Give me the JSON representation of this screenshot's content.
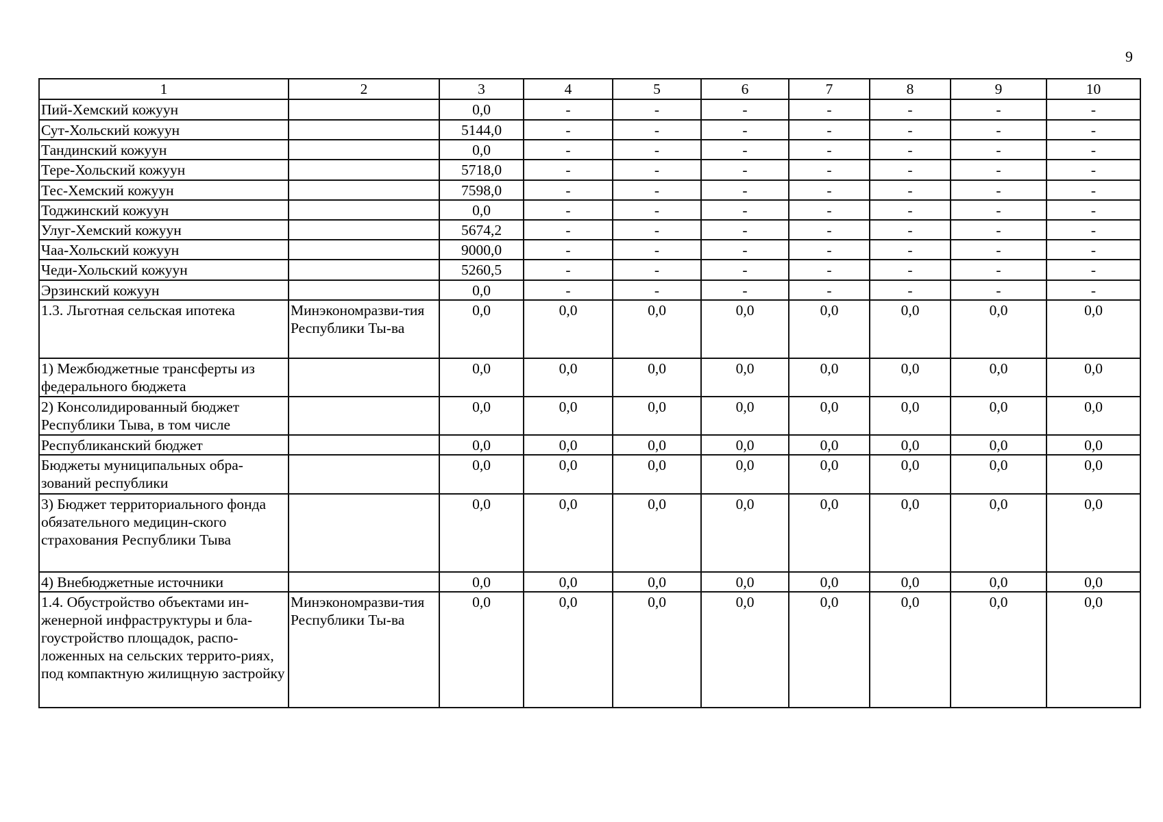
{
  "page_number": "9",
  "header": [
    "1",
    "2",
    "3",
    "4",
    "5",
    "6",
    "7",
    "8",
    "9",
    "10"
  ],
  "rows": [
    {
      "name": "Пий-Хемский кожуун",
      "resp": "",
      "values": [
        "0,0",
        "-",
        "-",
        "-",
        "-",
        "-",
        "-",
        "-"
      ]
    },
    {
      "name": "Сут-Хольский кожуун",
      "resp": "",
      "values": [
        "5144,0",
        "-",
        "-",
        "-",
        "-",
        "-",
        "-",
        "-"
      ]
    },
    {
      "name": "Тандинский кожуун",
      "resp": "",
      "values": [
        "0,0",
        "-",
        "-",
        "-",
        "-",
        "-",
        "-",
        "-"
      ]
    },
    {
      "name": "Тере-Хольский кожуун",
      "resp": "",
      "values": [
        "5718,0",
        "-",
        "-",
        "-",
        "-",
        "-",
        "-",
        "-"
      ]
    },
    {
      "name": "Тес-Хемский кожуун",
      "resp": "",
      "values": [
        "7598,0",
        "-",
        "-",
        "-",
        "-",
        "-",
        "-",
        "-"
      ]
    },
    {
      "name": "Тоджинский кожуун",
      "resp": "",
      "values": [
        "0,0",
        "-",
        "-",
        "-",
        "-",
        "-",
        "-",
        "-"
      ]
    },
    {
      "name": "Улуг-Хемский кожуун",
      "resp": "",
      "values": [
        "5674,2",
        "-",
        "-",
        "-",
        "-",
        "-",
        "-",
        "-"
      ]
    },
    {
      "name": "Чаа-Хольский кожуун",
      "resp": "",
      "values": [
        "9000,0",
        "-",
        "-",
        "-",
        "-",
        "-",
        "-",
        "-"
      ]
    },
    {
      "name": "Чеди-Хольский кожуун",
      "resp": "",
      "values": [
        "5260,5",
        "-",
        "-",
        "-",
        "-",
        "-",
        "-",
        "-"
      ]
    },
    {
      "name": "Эрзинский кожуун",
      "resp": "",
      "values": [
        "0,0",
        "-",
        "-",
        "-",
        "-",
        "-",
        "-",
        "-"
      ]
    },
    {
      "name": "1.3. Льготная сельская ипотека",
      "resp": "Минэкономразви-тия Республики Ты-ва",
      "values": [
        "0,0",
        "0,0",
        "0,0",
        "0,0",
        "0,0",
        "0,0",
        "0,0",
        "0,0"
      ]
    },
    {
      "name": "1) Межбюджетные трансферты из федерального бюджета",
      "resp": "",
      "values": [
        "0,0",
        "0,0",
        "0,0",
        "0,0",
        "0,0",
        "0,0",
        "0,0",
        "0,0"
      ]
    },
    {
      "name": "2) Консолидированный бюджет Республики Тыва, в том числе",
      "resp": "",
      "values": [
        "0,0",
        "0,0",
        "0,0",
        "0,0",
        "0,0",
        "0,0",
        "0,0",
        "0,0"
      ]
    },
    {
      "name": "Республиканский бюджет",
      "resp": "",
      "values": [
        "0,0",
        "0,0",
        "0,0",
        "0,0",
        "0,0",
        "0,0",
        "0,0",
        "0,0"
      ]
    },
    {
      "name": "Бюджеты муниципальных обра-зований республики",
      "resp": "",
      "values": [
        "0,0",
        "0,0",
        "0,0",
        "0,0",
        "0,0",
        "0,0",
        "0,0",
        "0,0"
      ]
    },
    {
      "name": "3) Бюджет территориального фонда обязательного медицин-ского страхования Республики Тыва",
      "resp": "",
      "values": [
        "0,0",
        "0,0",
        "0,0",
        "0,0",
        "0,0",
        "0,0",
        "0,0",
        "0,0"
      ]
    },
    {
      "name": "4) Внебюджетные источники",
      "resp": "",
      "values": [
        "0,0",
        "0,0",
        "0,0",
        "0,0",
        "0,0",
        "0,0",
        "0,0",
        "0,0"
      ]
    },
    {
      "name": "1.4. Обустройство объектами ин-женерной инфраструктуры и бла-гоустройство площадок, распо-ложенных на сельских террито-риях, под компактную жилищную застройку",
      "resp": "Минэкономразви-тия Республики Ты-ва",
      "values": [
        "0,0",
        "0,0",
        "0,0",
        "0,0",
        "0,0",
        "0,0",
        "0,0",
        "0,0"
      ]
    }
  ]
}
